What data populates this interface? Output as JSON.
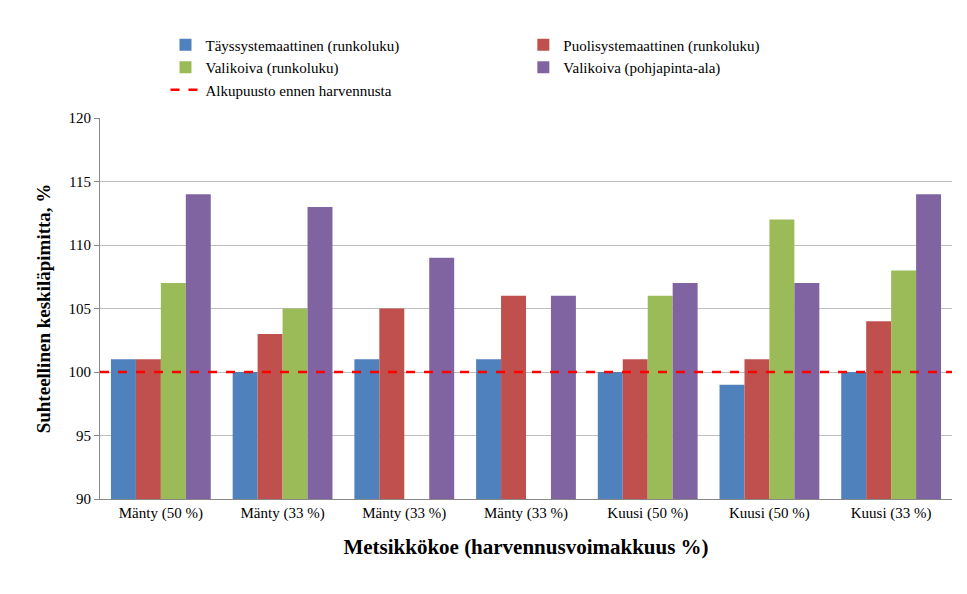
{
  "chart_data": {
    "type": "bar",
    "x_label": "Metsikkökoe (harvennusvoimakkuus %)",
    "y_label": "Suhteellinen keskiläpimitta, %",
    "categories": [
      "Mänty (50 %)",
      "Mänty (33 %)",
      "Mänty (33 %)",
      "Mänty (33 %)",
      "Kuusi (50 %)",
      "Kuusi (50 %)",
      "Kuusi (33 %)"
    ],
    "series": [
      {
        "name": "Täyssystemaattinen (runkoluku)",
        "color": "#4f81bd",
        "values": [
          101,
          100,
          101,
          101,
          100,
          99,
          100
        ]
      },
      {
        "name": "Puolisystemaattinen (runkoluku)",
        "color": "#c0504d",
        "values": [
          101,
          103,
          105,
          106,
          101,
          101,
          104
        ]
      },
      {
        "name": "Valikoiva (runkoluku)",
        "color": "#9bbb59",
        "values": [
          107,
          105,
          null,
          null,
          106,
          112,
          108
        ]
      },
      {
        "name": "Valikoiva (pohjapinta-ala)",
        "color": "#8064a2",
        "values": [
          114,
          113,
          109,
          106,
          107,
          107,
          114
        ]
      },
      {
        "name": "Alkupuusto ennen harvennusta",
        "type": "line",
        "line_style": "dashed",
        "color": "#ff0000",
        "values": [
          100,
          100,
          100,
          100,
          100,
          100,
          100
        ]
      }
    ],
    "ylim": [
      90,
      120
    ],
    "yticks": [
      90,
      95,
      100,
      105,
      110,
      115,
      120
    ],
    "grid": true,
    "legend": "top"
  }
}
